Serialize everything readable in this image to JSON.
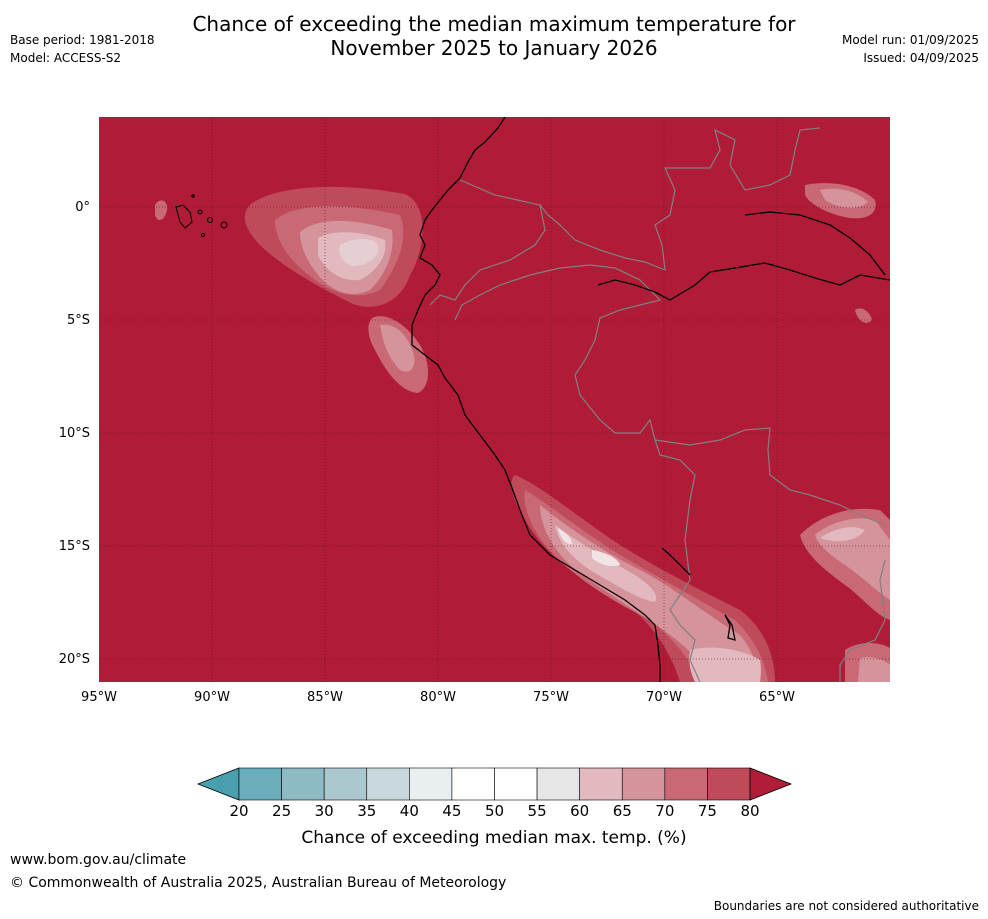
{
  "header": {
    "title_line1": "Chance of exceeding the median maximum temperature for",
    "title_line2": "November 2025 to January 2026",
    "base_period": "Base period: 1981-2018",
    "model": "Model: ACCESS-S2",
    "model_run": "Model run: 01/09/2025",
    "issued": "Issued: 04/09/2025"
  },
  "map": {
    "lat_labels": [
      "0°",
      "5°S",
      "10°S",
      "15°S",
      "20°S"
    ],
    "lon_labels": [
      "95°W",
      "90°W",
      "85°W",
      "80°W",
      "75°W",
      "70°W",
      "65°W"
    ],
    "background_category": "80+",
    "background_color": "#b01c38",
    "coast_color": "#000000",
    "border_color": "#808080"
  },
  "legend": {
    "ticks": [
      "20",
      "25",
      "30",
      "35",
      "40",
      "45",
      "50",
      "55",
      "60",
      "65",
      "70",
      "75",
      "80"
    ],
    "colors": [
      "#4a9fae",
      "#6aaebb",
      "#8ebac5",
      "#abc8ce",
      "#c8d8dc",
      "#e9eff1",
      "#ffffff",
      "#ffffff",
      "#e6e6e6",
      "#e1b9bf",
      "#d5939c",
      "#c96976",
      "#bf4a5a",
      "#b01c38"
    ],
    "title": "Chance of exceeding median max. temp. (%)"
  },
  "footer": {
    "website": "www.bom.gov.au/climate",
    "copyright": "© Commonwealth of Australia 2025, Australian Bureau of Meteorology",
    "disclaimer": "Boundaries are not considered authoritative"
  }
}
